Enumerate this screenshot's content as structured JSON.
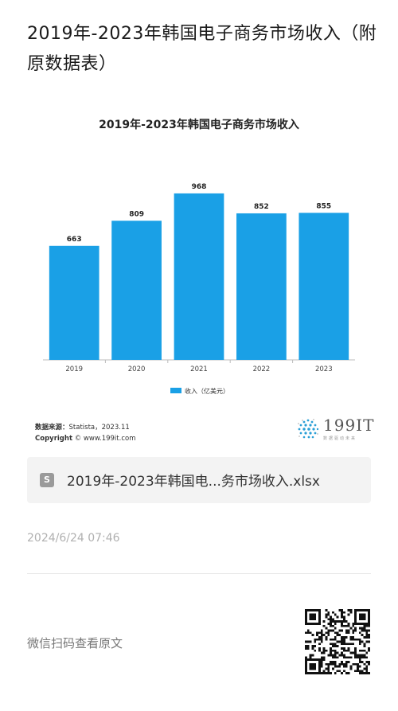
{
  "page": {
    "title": "2019年-2023年韩国电子商务市场收入（附原数据表）"
  },
  "chart_data": {
    "type": "bar",
    "title": "2019年-2023年韩国电子商务市场收入",
    "categories": [
      "2019",
      "2020",
      "2021",
      "2022",
      "2023"
    ],
    "series": [
      {
        "name": "收入（亿美元）",
        "values": [
          663,
          809,
          968,
          852,
          855
        ]
      }
    ],
    "ylim": [
      0,
      1000
    ],
    "grid": false,
    "legend_position": "bottom",
    "bar_color": "#1aa0e6"
  },
  "source": {
    "label": "数据来源：",
    "text": "Statista，2023.11",
    "copyright_label": "Copyright",
    "copyright_text": "© www.199it.com"
  },
  "logo": {
    "brand": "199IT",
    "tagline": "数据驱动未来"
  },
  "attachment": {
    "icon": "file-icon",
    "filename": "2019年-2023年韩国电...务市场收入.xlsx"
  },
  "timestamp": "2024/6/24 07:46",
  "footer": {
    "scan_text": "微信扫码查看原文",
    "qr_icon": "qr-code-icon"
  }
}
